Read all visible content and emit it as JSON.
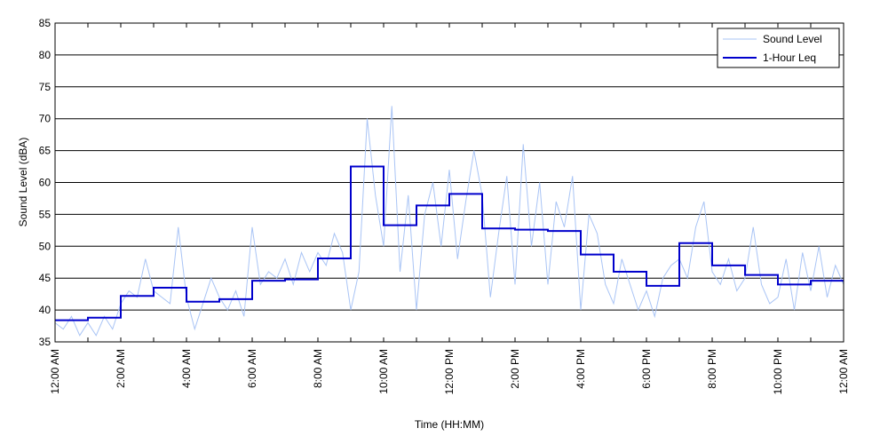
{
  "chart_data": {
    "type": "line",
    "xlabel": "Time (HH:MM)",
    "ylabel": "Sound Level (dBA)",
    "ylim": [
      35,
      85
    ],
    "xlim": [
      0,
      24
    ],
    "y_ticks": [
      35,
      40,
      45,
      50,
      55,
      60,
      65,
      70,
      75,
      80,
      85
    ],
    "x_tick_hours": [
      0,
      2,
      4,
      6,
      8,
      10,
      12,
      14,
      16,
      18,
      20,
      22,
      24
    ],
    "x_tick_labels": [
      "12:00 AM",
      "2:00 AM",
      "4:00 AM",
      "6:00 AM",
      "8:00 AM",
      "10:00 AM",
      "12:00 PM",
      "2:00 PM",
      "4:00 PM",
      "6:00 PM",
      "8:00 PM",
      "10:00 PM",
      "12:00 AM"
    ],
    "grid": "horizontal",
    "legend_position": "top-right",
    "series": [
      {
        "name": "Sound Level",
        "color": "#a9c4f5",
        "style": "thin-line",
        "x_hours": [
          0.0,
          0.25,
          0.5,
          0.75,
          1.0,
          1.25,
          1.5,
          1.75,
          2.0,
          2.25,
          2.5,
          2.75,
          3.0,
          3.25,
          3.5,
          3.75,
          4.0,
          4.25,
          4.5,
          4.75,
          5.0,
          5.25,
          5.5,
          5.75,
          6.0,
          6.25,
          6.5,
          6.75,
          7.0,
          7.25,
          7.5,
          7.75,
          8.0,
          8.25,
          8.5,
          8.75,
          9.0,
          9.25,
          9.5,
          9.75,
          10.0,
          10.25,
          10.5,
          10.75,
          11.0,
          11.25,
          11.5,
          11.75,
          12.0,
          12.25,
          12.5,
          12.75,
          13.0,
          13.25,
          13.5,
          13.75,
          14.0,
          14.25,
          14.5,
          14.75,
          15.0,
          15.25,
          15.5,
          15.75,
          16.0,
          16.25,
          16.5,
          16.75,
          17.0,
          17.25,
          17.5,
          17.75,
          18.0,
          18.25,
          18.5,
          18.75,
          19.0,
          19.25,
          19.5,
          19.75,
          20.0,
          20.25,
          20.5,
          20.75,
          21.0,
          21.25,
          21.5,
          21.75,
          22.0,
          22.25,
          22.5,
          22.75,
          23.0,
          23.25,
          23.5,
          23.75,
          24.0
        ],
        "values": [
          38,
          37,
          39,
          36,
          38,
          36,
          39,
          37,
          41,
          43,
          42,
          48,
          43,
          42,
          41,
          53,
          42,
          37,
          41,
          45,
          42,
          40,
          43,
          39,
          53,
          44,
          46,
          45,
          48,
          44,
          49,
          46,
          49,
          47,
          52,
          49,
          40,
          46,
          70,
          58,
          50,
          72,
          46,
          58,
          40,
          55,
          60,
          50,
          62,
          48,
          57,
          65,
          58,
          42,
          52,
          61,
          44,
          66,
          50,
          60,
          44,
          57,
          53,
          61,
          40,
          55,
          52,
          44,
          41,
          48,
          44,
          40,
          43,
          39,
          45,
          47,
          48,
          45,
          53,
          57,
          46,
          44,
          48,
          43,
          45,
          53,
          44,
          41,
          42,
          48,
          40,
          49,
          43,
          50,
          42,
          47,
          44
        ]
      },
      {
        "name": "1-Hour Leq",
        "color": "#0000cc",
        "style": "step",
        "hour_starts": [
          0,
          1,
          2,
          3,
          4,
          5,
          6,
          7,
          8,
          9,
          10,
          11,
          12,
          13,
          14,
          15,
          16,
          17,
          18,
          19,
          20,
          21,
          22,
          23
        ],
        "values": [
          38.4,
          38.8,
          42.2,
          43.5,
          41.3,
          41.7,
          44.6,
          44.8,
          48.1,
          62.5,
          53.3,
          56.4,
          58.2,
          52.8,
          52.6,
          52.4,
          48.7,
          46.0,
          43.8,
          50.5,
          47.0,
          45.5,
          44.0,
          44.6
        ]
      }
    ]
  }
}
